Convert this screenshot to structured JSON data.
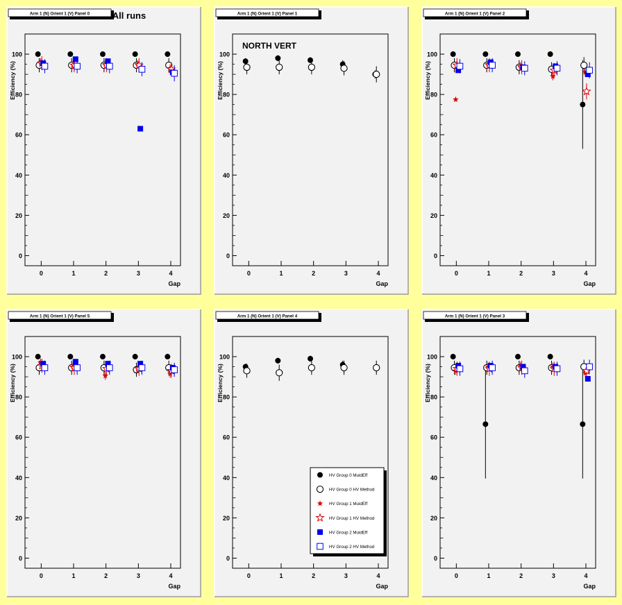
{
  "page_title": "All runs",
  "annotation": "NORTH VERT",
  "axis": {
    "xlabel": "Gap",
    "ylabel": "Efficiency (%)",
    "ylim": [
      -5,
      110
    ],
    "xlim": [
      -0.5,
      4.3
    ],
    "yticks": [
      "0",
      "20",
      "40",
      "60",
      "80",
      "100"
    ],
    "xticks": [
      "0",
      "1",
      "2",
      "3",
      "4"
    ]
  },
  "legend": {
    "entries": [
      {
        "label": "HV Group 0 MuidEff",
        "marker": "filled-circle",
        "color": "#000000"
      },
      {
        "label": "HV Group 0 HV Method",
        "marker": "open-circle",
        "color": "#000000"
      },
      {
        "label": "HV Group 1 MuidEff",
        "marker": "filled-star",
        "color": "#dd0000"
      },
      {
        "label": "HV Group 1 HV Method",
        "marker": "open-star",
        "color": "#dd0000"
      },
      {
        "label": "HV Group 2 MuidEff",
        "marker": "filled-square",
        "color": "#0000ee"
      },
      {
        "label": "HV Group 2 HV Method",
        "marker": "open-square",
        "color": "#0000ee"
      }
    ]
  },
  "chart_data": [
    {
      "type": "scatter",
      "title": "Arm 1 (N) Orient 1 (V) Panel 0",
      "x": [
        0,
        1,
        2,
        3,
        4
      ],
      "xlabel": "Gap",
      "ylabel": "Efficiency (%)",
      "ylim": [
        -5,
        110
      ],
      "series": [
        {
          "name": "HV Group 0 MuidEff",
          "values": [
            100,
            100,
            100,
            100,
            100
          ],
          "err": [
            0,
            0,
            0,
            0,
            0
          ]
        },
        {
          "name": "HV Group 0 HV Method",
          "values": [
            94.5,
            94.5,
            94.5,
            94.5,
            94.5
          ],
          "err": [
            3.5,
            3.5,
            3.5,
            3.5,
            3.5
          ]
        },
        {
          "name": "HV Group 1 MuidEff",
          "values": [
            96,
            94.5,
            95,
            95,
            93
          ],
          "err": [
            2,
            2,
            2,
            2,
            2
          ]
        },
        {
          "name": "HV Group 1 HV Method",
          "values": [
            95.5,
            94.5,
            94.5,
            94.5,
            92.5
          ],
          "err": [
            3.5,
            3.5,
            3.5,
            3.5,
            3.5
          ]
        },
        {
          "name": "HV Group 2 MuidEff",
          "values": [
            95.5,
            97.5,
            96.5,
            63,
            91
          ],
          "err": [
            0,
            0,
            0,
            0,
            0
          ]
        },
        {
          "name": "HV Group 2 HV Method",
          "values": [
            94,
            94,
            94,
            92.5,
            90.5
          ],
          "err": [
            3.5,
            3.5,
            3.5,
            3.5,
            4
          ]
        }
      ]
    },
    {
      "type": "scatter",
      "title": "Arm 1 (N) Orient 1 (V) Panel 1",
      "x": [
        0,
        1,
        2,
        3,
        4
      ],
      "xlabel": "Gap",
      "ylabel": "Efficiency (%)",
      "ylim": [
        -5,
        110
      ],
      "series": [
        {
          "name": "HV Group 0 MuidEff",
          "values": [
            96.5,
            98,
            97,
            95,
            90
          ],
          "err": [
            1.5,
            1.5,
            1.5,
            2,
            2
          ]
        },
        {
          "name": "HV Group 0 HV Method",
          "values": [
            93.5,
            93.5,
            93.5,
            93,
            90
          ],
          "err": [
            3.5,
            3.5,
            3.5,
            3.5,
            4
          ]
        }
      ]
    },
    {
      "type": "scatter",
      "title": "Arm 1 (N) Orient 1 (V) Panel 2",
      "x": [
        0,
        1,
        2,
        3,
        4
      ],
      "xlabel": "Gap",
      "ylabel": "Efficiency (%)",
      "ylim": [
        -5,
        110
      ],
      "series": [
        {
          "name": "HV Group 0 MuidEff",
          "values": [
            100,
            100,
            100,
            100,
            75
          ],
          "err": [
            0,
            0,
            0,
            0,
            22
          ]
        },
        {
          "name": "HV Group 0 HV Method",
          "values": [
            94.5,
            94.5,
            93.5,
            92.5,
            94.5
          ],
          "err": [
            3.5,
            3.5,
            3.5,
            3.5,
            4
          ]
        },
        {
          "name": "HV Group 1 MuidEff",
          "values": [
            77.5,
            95,
            94,
            89,
            91
          ],
          "err": [
            1,
            2,
            2,
            2,
            2
          ]
        },
        {
          "name": "HV Group 1 HV Method",
          "values": [
            94.5,
            94.5,
            93.5,
            92,
            81.5
          ],
          "err": [
            3.5,
            3.5,
            3.5,
            3.5,
            4
          ]
        },
        {
          "name": "HV Group 2 MuidEff",
          "values": [
            92,
            96,
            93.5,
            94,
            90
          ],
          "err": [
            0,
            0,
            0,
            0,
            0
          ]
        },
        {
          "name": "HV Group 2 HV Method",
          "values": [
            94,
            94.5,
            93,
            93,
            92
          ],
          "err": [
            3.5,
            3.5,
            3.5,
            3.5,
            4
          ]
        }
      ]
    },
    {
      "type": "scatter",
      "title": "Arm 1 (N) Orient 1 (V) Panel 5",
      "x": [
        0,
        1,
        2,
        3,
        4
      ],
      "xlabel": "Gap",
      "ylabel": "Efficiency (%)",
      "ylim": [
        -5,
        110
      ],
      "series": [
        {
          "name": "HV Group 0 MuidEff",
          "values": [
            100,
            100,
            100,
            100,
            100
          ],
          "err": [
            0,
            0,
            0,
            0,
            0
          ]
        },
        {
          "name": "HV Group 0 HV Method",
          "values": [
            94.5,
            94.5,
            94.5,
            93.5,
            94.5
          ],
          "err": [
            3.5,
            3.5,
            3.5,
            3.5,
            3.5
          ]
        },
        {
          "name": "HV Group 1 MuidEff",
          "values": [
            97,
            95,
            90.5,
            94,
            91.5
          ],
          "err": [
            2,
            2,
            2,
            2,
            2
          ]
        },
        {
          "name": "HV Group 1 HV Method",
          "values": [
            95.5,
            94.5,
            94,
            94,
            93
          ],
          "err": [
            3.5,
            3.5,
            3.5,
            3.5,
            3.5
          ]
        },
        {
          "name": "HV Group 2 MuidEff",
          "values": [
            96.5,
            97.5,
            96.5,
            96.5,
            94.5
          ],
          "err": [
            0,
            0,
            0,
            0,
            0
          ]
        },
        {
          "name": "HV Group 2 HV Method",
          "values": [
            94.5,
            94.5,
            94.5,
            94.5,
            93.5
          ],
          "err": [
            3.5,
            3.5,
            3.5,
            3.5,
            3.5
          ]
        }
      ]
    },
    {
      "type": "scatter",
      "title": "Arm 1 (N) Orient 1 (V) Panel 4",
      "x": [
        0,
        1,
        2,
        3,
        4
      ],
      "xlabel": "Gap",
      "ylabel": "Efficiency (%)",
      "ylim": [
        -5,
        110
      ],
      "series": [
        {
          "name": "HV Group 0 MuidEff",
          "values": [
            95,
            98,
            99,
            96,
            null
          ],
          "err": [
            1.5,
            1.5,
            1.5,
            2,
            0
          ]
        },
        {
          "name": "HV Group 0 HV Method",
          "values": [
            93,
            92,
            94.5,
            94.5,
            94.5
          ],
          "err": [
            3.5,
            4,
            3.5,
            3.5,
            3.5
          ]
        }
      ]
    },
    {
      "type": "scatter",
      "title": "Arm 1 (N) Orient 1 (V) Panel 3",
      "x": [
        0,
        1,
        2,
        3,
        4
      ],
      "xlabel": "Gap",
      "ylabel": "Efficiency (%)",
      "ylim": [
        -5,
        110
      ],
      "series": [
        {
          "name": "HV Group 0 MuidEff",
          "values": [
            100,
            66.5,
            100,
            100,
            66.5
          ],
          "err": [
            0,
            27,
            0,
            0,
            27
          ]
        },
        {
          "name": "HV Group 0 HV Method",
          "values": [
            94.5,
            94.5,
            94.5,
            94.5,
            95
          ],
          "err": [
            3.5,
            3.5,
            3.5,
            3.5,
            3.5
          ]
        },
        {
          "name": "HV Group 1 MuidEff",
          "values": [
            93,
            95,
            95.5,
            95,
            92
          ],
          "err": [
            2,
            2,
            2,
            2,
            2
          ]
        },
        {
          "name": "HV Group 1 HV Method",
          "values": [
            94,
            94,
            94.5,
            94,
            93
          ],
          "err": [
            3.5,
            3.5,
            3.5,
            3.5,
            3.5
          ]
        },
        {
          "name": "HV Group 2 MuidEff",
          "values": [
            95.5,
            95.5,
            95,
            95,
            89
          ],
          "err": [
            0,
            0,
            0,
            0,
            0
          ]
        },
        {
          "name": "HV Group 2 HV Method",
          "values": [
            94,
            94.5,
            93,
            94,
            95
          ],
          "err": [
            3.5,
            3.5,
            3.5,
            3.5,
            3.5
          ]
        }
      ]
    }
  ]
}
